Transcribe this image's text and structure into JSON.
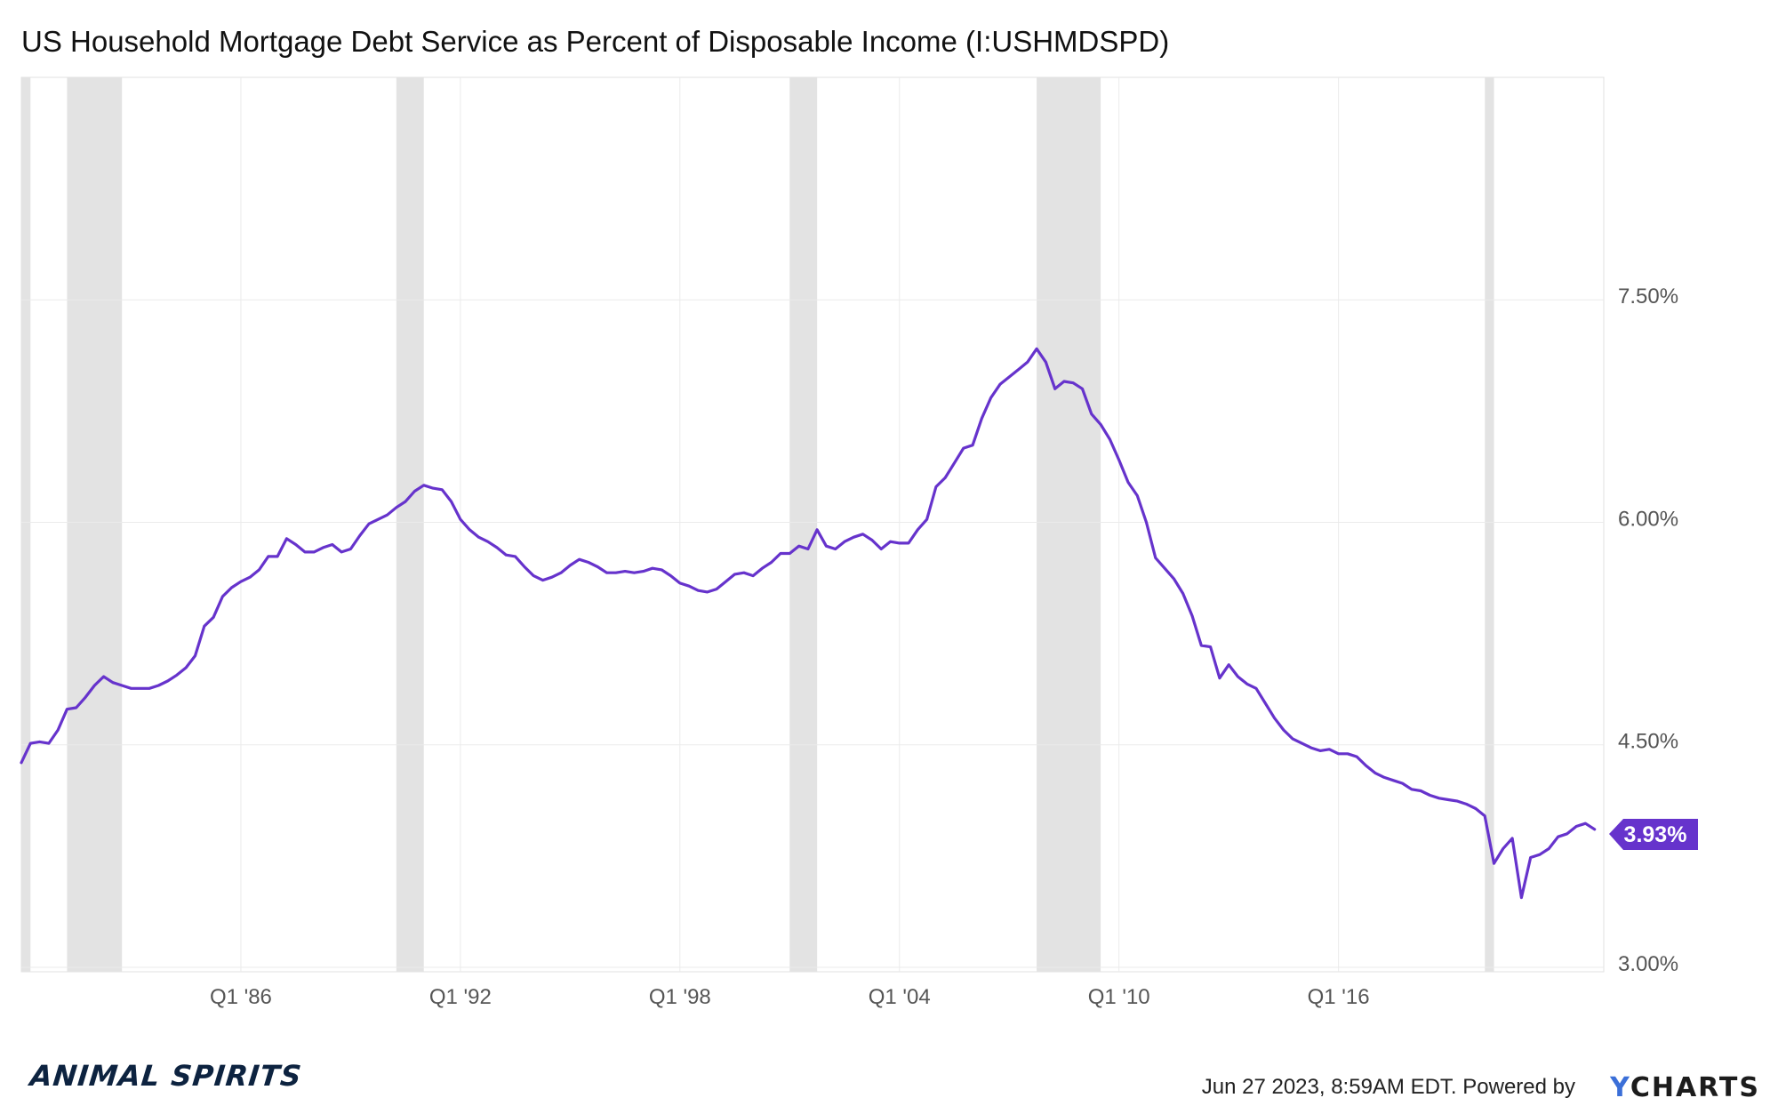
{
  "title": "US Household Mortgage Debt Service as Percent of Disposable Income (I:USHMDSPD)",
  "footer": "Jun 27 2023, 8:59AM EDT. Powered by",
  "ycharts_logo": {
    "y": "Y",
    "rest": "CHARTS"
  },
  "brand_logo": "ANIMAL SPIRITS",
  "colors": {
    "line": "#6633cc",
    "recession": "#e3e3e3",
    "grid": "#ebebeb",
    "label_bg": "#6633cc"
  },
  "chart_data": {
    "type": "line",
    "title": "US Household Mortgage Debt Service as Percent of Disposable Income (I:USHMDSPD)",
    "xlabel": "",
    "ylabel": "",
    "xlim": [
      1980.0,
      2023.25
    ],
    "ylim": [
      2.97,
      9.0
    ],
    "x_ticks": [
      {
        "x": 1986.0,
        "label": "Q1 '86"
      },
      {
        "x": 1992.0,
        "label": "Q1 '92"
      },
      {
        "x": 1998.0,
        "label": "Q1 '98"
      },
      {
        "x": 2004.0,
        "label": "Q1 '04"
      },
      {
        "x": 2010.0,
        "label": "Q1 '10"
      },
      {
        "x": 2016.0,
        "label": "Q1 '16"
      }
    ],
    "y_ticks": [
      {
        "y": 3.0,
        "label": "3.00%"
      },
      {
        "y": 4.5,
        "label": "4.50%"
      },
      {
        "y": 6.0,
        "label": "6.00%"
      },
      {
        "y": 7.5,
        "label": "7.50%"
      }
    ],
    "grid": true,
    "recessions": [
      [
        1980.0,
        1980.25
      ],
      [
        1981.25,
        1982.75
      ],
      [
        1990.25,
        1991.0
      ],
      [
        2001.0,
        2001.75
      ],
      [
        2007.75,
        2009.5
      ],
      [
        2020.0,
        2020.25
      ]
    ],
    "last_value_label": "3.93%",
    "series": [
      {
        "points": [
          [
            1980.0,
            4.38
          ],
          [
            1980.25,
            4.51
          ],
          [
            1980.5,
            4.52
          ],
          [
            1980.75,
            4.51
          ],
          [
            1981.0,
            4.6
          ],
          [
            1981.25,
            4.74
          ],
          [
            1981.5,
            4.75
          ],
          [
            1981.75,
            4.82
          ],
          [
            1982.0,
            4.9
          ],
          [
            1982.25,
            4.96
          ],
          [
            1982.5,
            4.92
          ],
          [
            1982.75,
            4.9
          ],
          [
            1983.0,
            4.88
          ],
          [
            1983.25,
            4.88
          ],
          [
            1983.5,
            4.88
          ],
          [
            1983.75,
            4.9
          ],
          [
            1984.0,
            4.93
          ],
          [
            1984.25,
            4.97
          ],
          [
            1984.5,
            5.02
          ],
          [
            1984.75,
            5.1
          ],
          [
            1985.0,
            5.3
          ],
          [
            1985.25,
            5.36
          ],
          [
            1985.5,
            5.5
          ],
          [
            1985.75,
            5.56
          ],
          [
            1986.0,
            5.6
          ],
          [
            1986.25,
            5.63
          ],
          [
            1986.5,
            5.68
          ],
          [
            1986.75,
            5.77
          ],
          [
            1987.0,
            5.77
          ],
          [
            1987.25,
            5.89
          ],
          [
            1987.5,
            5.85
          ],
          [
            1987.75,
            5.8
          ],
          [
            1988.0,
            5.8
          ],
          [
            1988.25,
            5.83
          ],
          [
            1988.5,
            5.85
          ],
          [
            1988.75,
            5.8
          ],
          [
            1989.0,
            5.82
          ],
          [
            1989.25,
            5.91
          ],
          [
            1989.5,
            5.99
          ],
          [
            1989.75,
            6.02
          ],
          [
            1990.0,
            6.05
          ],
          [
            1990.25,
            6.1
          ],
          [
            1990.5,
            6.14
          ],
          [
            1990.75,
            6.21
          ],
          [
            1991.0,
            6.25
          ],
          [
            1991.25,
            6.23
          ],
          [
            1991.5,
            6.22
          ],
          [
            1991.75,
            6.14
          ],
          [
            1992.0,
            6.02
          ],
          [
            1992.25,
            5.95
          ],
          [
            1992.5,
            5.9
          ],
          [
            1992.75,
            5.87
          ],
          [
            1993.0,
            5.83
          ],
          [
            1993.25,
            5.78
          ],
          [
            1993.5,
            5.77
          ],
          [
            1993.75,
            5.7
          ],
          [
            1994.0,
            5.64
          ],
          [
            1994.25,
            5.61
          ],
          [
            1994.5,
            5.63
          ],
          [
            1994.75,
            5.66
          ],
          [
            1995.0,
            5.71
          ],
          [
            1995.25,
            5.75
          ],
          [
            1995.5,
            5.73
          ],
          [
            1995.75,
            5.7
          ],
          [
            1996.0,
            5.66
          ],
          [
            1996.25,
            5.66
          ],
          [
            1996.5,
            5.67
          ],
          [
            1996.75,
            5.66
          ],
          [
            1997.0,
            5.67
          ],
          [
            1997.25,
            5.69
          ],
          [
            1997.5,
            5.68
          ],
          [
            1997.75,
            5.64
          ],
          [
            1998.0,
            5.59
          ],
          [
            1998.25,
            5.57
          ],
          [
            1998.5,
            5.54
          ],
          [
            1998.75,
            5.53
          ],
          [
            1999.0,
            5.55
          ],
          [
            1999.25,
            5.6
          ],
          [
            1999.5,
            5.65
          ],
          [
            1999.75,
            5.66
          ],
          [
            2000.0,
            5.64
          ],
          [
            2000.25,
            5.69
          ],
          [
            2000.5,
            5.73
          ],
          [
            2000.75,
            5.79
          ],
          [
            2001.0,
            5.79
          ],
          [
            2001.25,
            5.84
          ],
          [
            2001.5,
            5.82
          ],
          [
            2001.75,
            5.95
          ],
          [
            2002.0,
            5.84
          ],
          [
            2002.25,
            5.82
          ],
          [
            2002.5,
            5.87
          ],
          [
            2002.75,
            5.9
          ],
          [
            2003.0,
            5.92
          ],
          [
            2003.25,
            5.88
          ],
          [
            2003.5,
            5.82
          ],
          [
            2003.75,
            5.87
          ],
          [
            2004.0,
            5.86
          ],
          [
            2004.25,
            5.86
          ],
          [
            2004.5,
            5.95
          ],
          [
            2004.75,
            6.02
          ],
          [
            2005.0,
            6.24
          ],
          [
            2005.25,
            6.3
          ],
          [
            2005.5,
            6.4
          ],
          [
            2005.75,
            6.5
          ],
          [
            2006.0,
            6.52
          ],
          [
            2006.25,
            6.7
          ],
          [
            2006.5,
            6.84
          ],
          [
            2006.75,
            6.93
          ],
          [
            2007.0,
            6.98
          ],
          [
            2007.25,
            7.03
          ],
          [
            2007.5,
            7.08
          ],
          [
            2007.75,
            7.17
          ],
          [
            2008.0,
            7.08
          ],
          [
            2008.25,
            6.9
          ],
          [
            2008.5,
            6.95
          ],
          [
            2008.75,
            6.94
          ],
          [
            2009.0,
            6.9
          ],
          [
            2009.25,
            6.73
          ],
          [
            2009.5,
            6.66
          ],
          [
            2009.75,
            6.56
          ],
          [
            2010.0,
            6.42
          ],
          [
            2010.25,
            6.27
          ],
          [
            2010.5,
            6.18
          ],
          [
            2010.75,
            6.0
          ],
          [
            2011.0,
            5.76
          ],
          [
            2011.25,
            5.69
          ],
          [
            2011.5,
            5.62
          ],
          [
            2011.75,
            5.52
          ],
          [
            2012.0,
            5.37
          ],
          [
            2012.25,
            5.17
          ],
          [
            2012.5,
            5.16
          ],
          [
            2012.75,
            4.95
          ],
          [
            2013.0,
            5.04
          ],
          [
            2013.25,
            4.96
          ],
          [
            2013.5,
            4.91
          ],
          [
            2013.75,
            4.88
          ],
          [
            2014.0,
            4.78
          ],
          [
            2014.25,
            4.68
          ],
          [
            2014.5,
            4.6
          ],
          [
            2014.75,
            4.54
          ],
          [
            2015.0,
            4.51
          ],
          [
            2015.25,
            4.48
          ],
          [
            2015.5,
            4.46
          ],
          [
            2015.75,
            4.47
          ],
          [
            2016.0,
            4.44
          ],
          [
            2016.25,
            4.44
          ],
          [
            2016.5,
            4.42
          ],
          [
            2016.75,
            4.36
          ],
          [
            2017.0,
            4.31
          ],
          [
            2017.25,
            4.28
          ],
          [
            2017.5,
            4.26
          ],
          [
            2017.75,
            4.24
          ],
          [
            2018.0,
            4.2
          ],
          [
            2018.25,
            4.19
          ],
          [
            2018.5,
            4.16
          ],
          [
            2018.75,
            4.14
          ],
          [
            2019.0,
            4.13
          ],
          [
            2019.25,
            4.12
          ],
          [
            2019.5,
            4.1
          ],
          [
            2019.75,
            4.07
          ],
          [
            2020.0,
            4.02
          ],
          [
            2020.25,
            3.7
          ],
          [
            2020.5,
            3.8
          ],
          [
            2020.75,
            3.87
          ],
          [
            2021.0,
            3.47
          ],
          [
            2021.25,
            3.74
          ],
          [
            2021.5,
            3.76
          ],
          [
            2021.75,
            3.8
          ],
          [
            2022.0,
            3.88
          ],
          [
            2022.25,
            3.9
          ],
          [
            2022.5,
            3.95
          ],
          [
            2022.75,
            3.97
          ],
          [
            2023.0,
            3.93
          ]
        ]
      }
    ]
  }
}
